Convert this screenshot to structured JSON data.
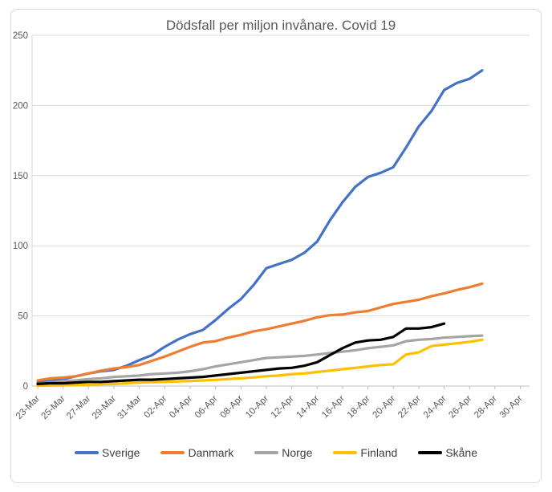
{
  "chart_data": {
    "type": "line",
    "title": "Dödsfall per miljon invånare. Covid 19",
    "xlabel": "",
    "ylabel": "",
    "ylim": [
      0,
      250
    ],
    "y_ticks": [
      0,
      50,
      100,
      150,
      200,
      250
    ],
    "grid": true,
    "legend_position": "bottom",
    "x_label_interval": 2,
    "categories": [
      "23-Mar",
      "24-Mar",
      "25-Mar",
      "26-Mar",
      "27-Mar",
      "28-Mar",
      "29-Mar",
      "30-Mar",
      "31-Mar",
      "01-Apr",
      "02-Apr",
      "03-Apr",
      "04-Apr",
      "05-Apr",
      "06-Apr",
      "07-Apr",
      "08-Apr",
      "09-Apr",
      "10-Apr",
      "11-Apr",
      "12-Apr",
      "13-Apr",
      "14-Apr",
      "15-Apr",
      "16-Apr",
      "17-Apr",
      "18-Apr",
      "19-Apr",
      "20-Apr",
      "21-Apr",
      "22-Apr",
      "23-Apr",
      "24-Apr",
      "25-Apr",
      "26-Apr",
      "27-Apr",
      "28-Apr",
      "29-Apr",
      "30-Apr"
    ],
    "series": [
      {
        "name": "Sverige",
        "color": "#4472C4",
        "values": [
          2.5,
          3.5,
          5,
          7,
          9,
          10.5,
          11.5,
          14.5,
          18.5,
          22,
          28,
          33,
          37,
          40,
          47,
          55,
          62,
          72,
          84,
          87,
          90,
          95,
          103,
          118,
          131,
          142,
          149,
          152,
          156,
          170,
          185,
          196,
          211,
          216,
          219,
          225
        ]
      },
      {
        "name": "Danmark",
        "color": "#ED7D31",
        "values": [
          4,
          5.5,
          6,
          7,
          9,
          11,
          12.5,
          13.5,
          15,
          18,
          21,
          24.5,
          28,
          31,
          32,
          34.5,
          36.5,
          39,
          40.5,
          42.5,
          44.5,
          46.5,
          49,
          50.5,
          51,
          52.5,
          53.5,
          56,
          58.5,
          60,
          61.5,
          64,
          66,
          68.5,
          70.5,
          73
        ]
      },
      {
        "name": "Norge",
        "color": "#A5A5A5",
        "values": [
          1.5,
          2.5,
          3.5,
          4,
          5,
          5.5,
          6.5,
          7,
          7.5,
          8.5,
          9,
          9.5,
          10.5,
          12,
          14,
          15.5,
          17,
          18.5,
          20,
          20.5,
          21,
          21.5,
          22.5,
          23.5,
          24.5,
          25.5,
          27,
          28,
          29,
          32,
          33,
          33.5,
          34.5,
          35,
          35.5,
          36
        ]
      },
      {
        "name": "Finland",
        "color": "#FFC000",
        "values": [
          0.2,
          0.4,
          0.5,
          0.7,
          1,
          1.3,
          1.5,
          2,
          2.5,
          2.8,
          3,
          3.3,
          3.6,
          4,
          4.4,
          5,
          5.5,
          6.2,
          7,
          7.5,
          8.5,
          9,
          10,
          11,
          12,
          13,
          14,
          15,
          15.5,
          22.5,
          24,
          28.5,
          29.5,
          30.5,
          31.5,
          33
        ]
      },
      {
        "name": "Skåne",
        "color": "#000000",
        "values": [
          1.5,
          2,
          2,
          2.5,
          3,
          3,
          3.5,
          4,
          4.5,
          4.5,
          5,
          5.5,
          6,
          6.5,
          7.5,
          8.5,
          9.5,
          10.5,
          11.5,
          12.5,
          13,
          14.5,
          17,
          22,
          27,
          31,
          32.5,
          33,
          35,
          41,
          41,
          42,
          44.5
        ]
      }
    ]
  },
  "style": {
    "grid_color": "#D9D9D9",
    "axis_line_color": "#BFBFBF",
    "axis_text_color": "#595959",
    "title_color": "#595959",
    "legend_text_color": "#404040",
    "border_color": "#D9D9D9"
  }
}
